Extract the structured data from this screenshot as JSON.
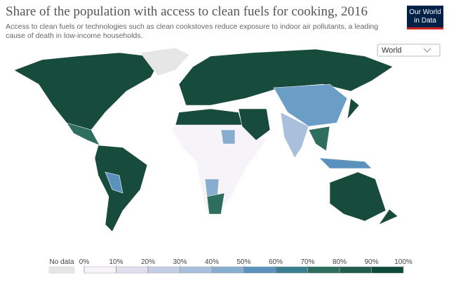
{
  "header": {
    "title": "Share of the population with access to clean fuels for cooking, 2016",
    "subtitle": [
      "Access to clean fuels or technologies such as clean cookstoves reduce exposure to indoor air pollutants, a leading",
      "cause of death in low-income households."
    ],
    "logo": [
      "Our World",
      "in Data"
    ]
  },
  "selector": {
    "value": "World"
  },
  "legend": {
    "no_data": "No data",
    "no_data_color": "#e6e6e6",
    "ticks": [
      {
        "value": 0,
        "label": "0%"
      },
      {
        "value": 10,
        "label": "10%"
      },
      {
        "value": 20,
        "label": "20%"
      },
      {
        "value": 30,
        "label": "30%"
      },
      {
        "value": 40,
        "label": "40%"
      },
      {
        "value": 50,
        "label": "50%"
      },
      {
        "value": 60,
        "label": "60%"
      },
      {
        "value": 70,
        "label": "70%"
      },
      {
        "value": 80,
        "label": "80%"
      },
      {
        "value": 90,
        "label": "90%"
      },
      {
        "value": 100,
        "label": "100%"
      }
    ],
    "colors": [
      "#f7f4f9",
      "#e0dfee",
      "#c4cde3",
      "#a8c0dc",
      "#87adcf",
      "#5a92bd",
      "#3a7f8f",
      "#2e6e5e",
      "#225c4a",
      "#0f4a39"
    ]
  }
}
